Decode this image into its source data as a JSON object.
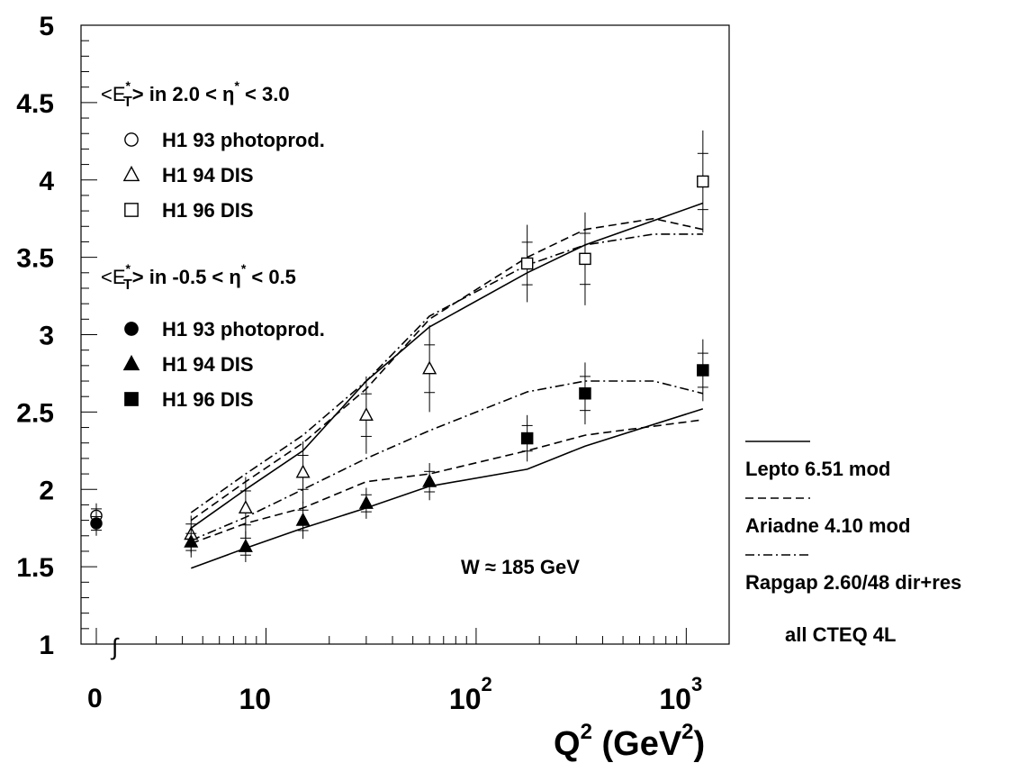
{
  "chart_data": {
    "type": "scatter",
    "xscale": "log",
    "xlim": [
      2.2,
      1600
    ],
    "ylim": [
      1,
      5
    ],
    "x_special_point": "0",
    "yticks": [
      "1",
      "1.5",
      "2",
      "2.5",
      "3",
      "3.5",
      "4",
      "4.5",
      "5"
    ],
    "ytick_values": [
      1,
      1.5,
      2,
      2.5,
      3,
      3.5,
      4,
      4.5,
      5
    ],
    "xticks": [
      {
        "value": 10,
        "base": "10",
        "exp": ""
      },
      {
        "value": 100,
        "base": "10",
        "exp": "2"
      },
      {
        "value": 1000,
        "base": "10",
        "exp": "3"
      }
    ],
    "xlabel": {
      "base": "Q",
      "exp1": "2",
      "mid": " (GeV",
      "exp2": "2",
      "end": ")"
    },
    "annotation": "W ≈ 185 GeV",
    "groups": [
      {
        "label_a": "<E",
        "label_sup": "*",
        "label_sub": "T",
        "label_b": "> in 2.0 < η",
        "label_c": " < 3.0"
      },
      {
        "label_a": "<E",
        "label_sup": "*",
        "label_sub": "T",
        "label_b": "> in -0.5 < η",
        "label_c": " < 0.5"
      }
    ],
    "series": [
      {
        "name": "H1 93 photoprod.",
        "marker": "circle-open",
        "points": [
          {
            "x": "0",
            "y": 1.83,
            "err": 0.08
          }
        ]
      },
      {
        "name": "H1 94 DIS",
        "marker": "triangle-open",
        "points": [
          {
            "x": 4.4,
            "y": 1.71,
            "err": 0.12
          },
          {
            "x": 8,
            "y": 1.88,
            "err": 0.2
          },
          {
            "x": 15,
            "y": 2.11,
            "err": 0.2
          },
          {
            "x": 30,
            "y": 2.48,
            "err": 0.25
          },
          {
            "x": 60,
            "y": 2.78,
            "err": 0.28
          }
        ]
      },
      {
        "name": "H1 96 DIS",
        "marker": "square-open",
        "points": [
          {
            "x": 175,
            "y": 3.46,
            "err": 0.25
          },
          {
            "x": 330,
            "y": 3.49,
            "err": 0.3
          },
          {
            "x": 1200,
            "y": 3.99,
            "err": 0.33
          }
        ]
      },
      {
        "name": "H1 93 photoprod.",
        "marker": "circle-filled",
        "points": [
          {
            "x": "0",
            "y": 1.78,
            "err": 0.08
          }
        ]
      },
      {
        "name": "H1 94 DIS",
        "marker": "triangle-filled",
        "points": [
          {
            "x": 4.4,
            "y": 1.66,
            "err": 0.1
          },
          {
            "x": 8,
            "y": 1.63,
            "err": 0.1
          },
          {
            "x": 15,
            "y": 1.8,
            "err": 0.12
          },
          {
            "x": 30,
            "y": 1.91,
            "err": 0.1
          },
          {
            "x": 60,
            "y": 2.05,
            "err": 0.12
          }
        ]
      },
      {
        "name": "H1 96 DIS",
        "marker": "square-filled",
        "points": [
          {
            "x": 175,
            "y": 2.33,
            "err": 0.15
          },
          {
            "x": 330,
            "y": 2.62,
            "err": 0.2
          },
          {
            "x": 1200,
            "y": 2.77,
            "err": 0.2
          }
        ]
      }
    ],
    "curves": [
      {
        "name": "Lepto 6.51 mod",
        "style": "solid",
        "group": "upper",
        "x": [
          4.4,
          8,
          15,
          30,
          60,
          175,
          330,
          1200
        ],
        "y": [
          1.75,
          2.0,
          2.25,
          2.7,
          3.05,
          3.4,
          3.58,
          3.85
        ]
      },
      {
        "name": "Ariadne 4.10 mod",
        "style": "dashed",
        "group": "upper",
        "x": [
          4.4,
          8,
          15,
          30,
          60,
          175,
          330,
          700,
          1200
        ],
        "y": [
          1.8,
          2.05,
          2.3,
          2.65,
          3.1,
          3.5,
          3.68,
          3.75,
          3.68
        ]
      },
      {
        "name": "Rapgap 2.60/48 dir+res",
        "style": "dashdot",
        "group": "upper",
        "x": [
          4.4,
          8,
          15,
          30,
          60,
          175,
          330,
          700,
          1200
        ],
        "y": [
          1.85,
          2.1,
          2.35,
          2.7,
          3.12,
          3.45,
          3.58,
          3.65,
          3.65
        ]
      },
      {
        "name": "Lepto 6.51 mod",
        "style": "solid",
        "group": "lower",
        "x": [
          4.4,
          8,
          15,
          30,
          60,
          175,
          330,
          1200
        ],
        "y": [
          1.49,
          1.62,
          1.75,
          1.88,
          2.02,
          2.13,
          2.28,
          2.52
        ]
      },
      {
        "name": "Ariadne 4.10 mod",
        "style": "dashed",
        "group": "lower",
        "x": [
          4.4,
          8,
          15,
          30,
          60,
          175,
          330,
          1200
        ],
        "y": [
          1.65,
          1.78,
          1.88,
          2.05,
          2.1,
          2.25,
          2.35,
          2.45
        ]
      },
      {
        "name": "Rapgap 2.60/48 dir+res",
        "style": "dashdot",
        "group": "lower",
        "x": [
          4.4,
          8,
          15,
          30,
          60,
          175,
          330,
          700,
          1200
        ],
        "y": [
          1.67,
          1.82,
          2.0,
          2.2,
          2.38,
          2.63,
          2.7,
          2.7,
          2.62
        ]
      }
    ],
    "legend_right": [
      {
        "label": "Lepto 6.51 mod",
        "style": "solid"
      },
      {
        "label": "Ariadne 4.10 mod",
        "style": "dashed"
      },
      {
        "label": "Rapgap 2.60/48 dir+res",
        "style": "dashdot"
      }
    ],
    "legend_note": "all CTEQ 4L"
  }
}
